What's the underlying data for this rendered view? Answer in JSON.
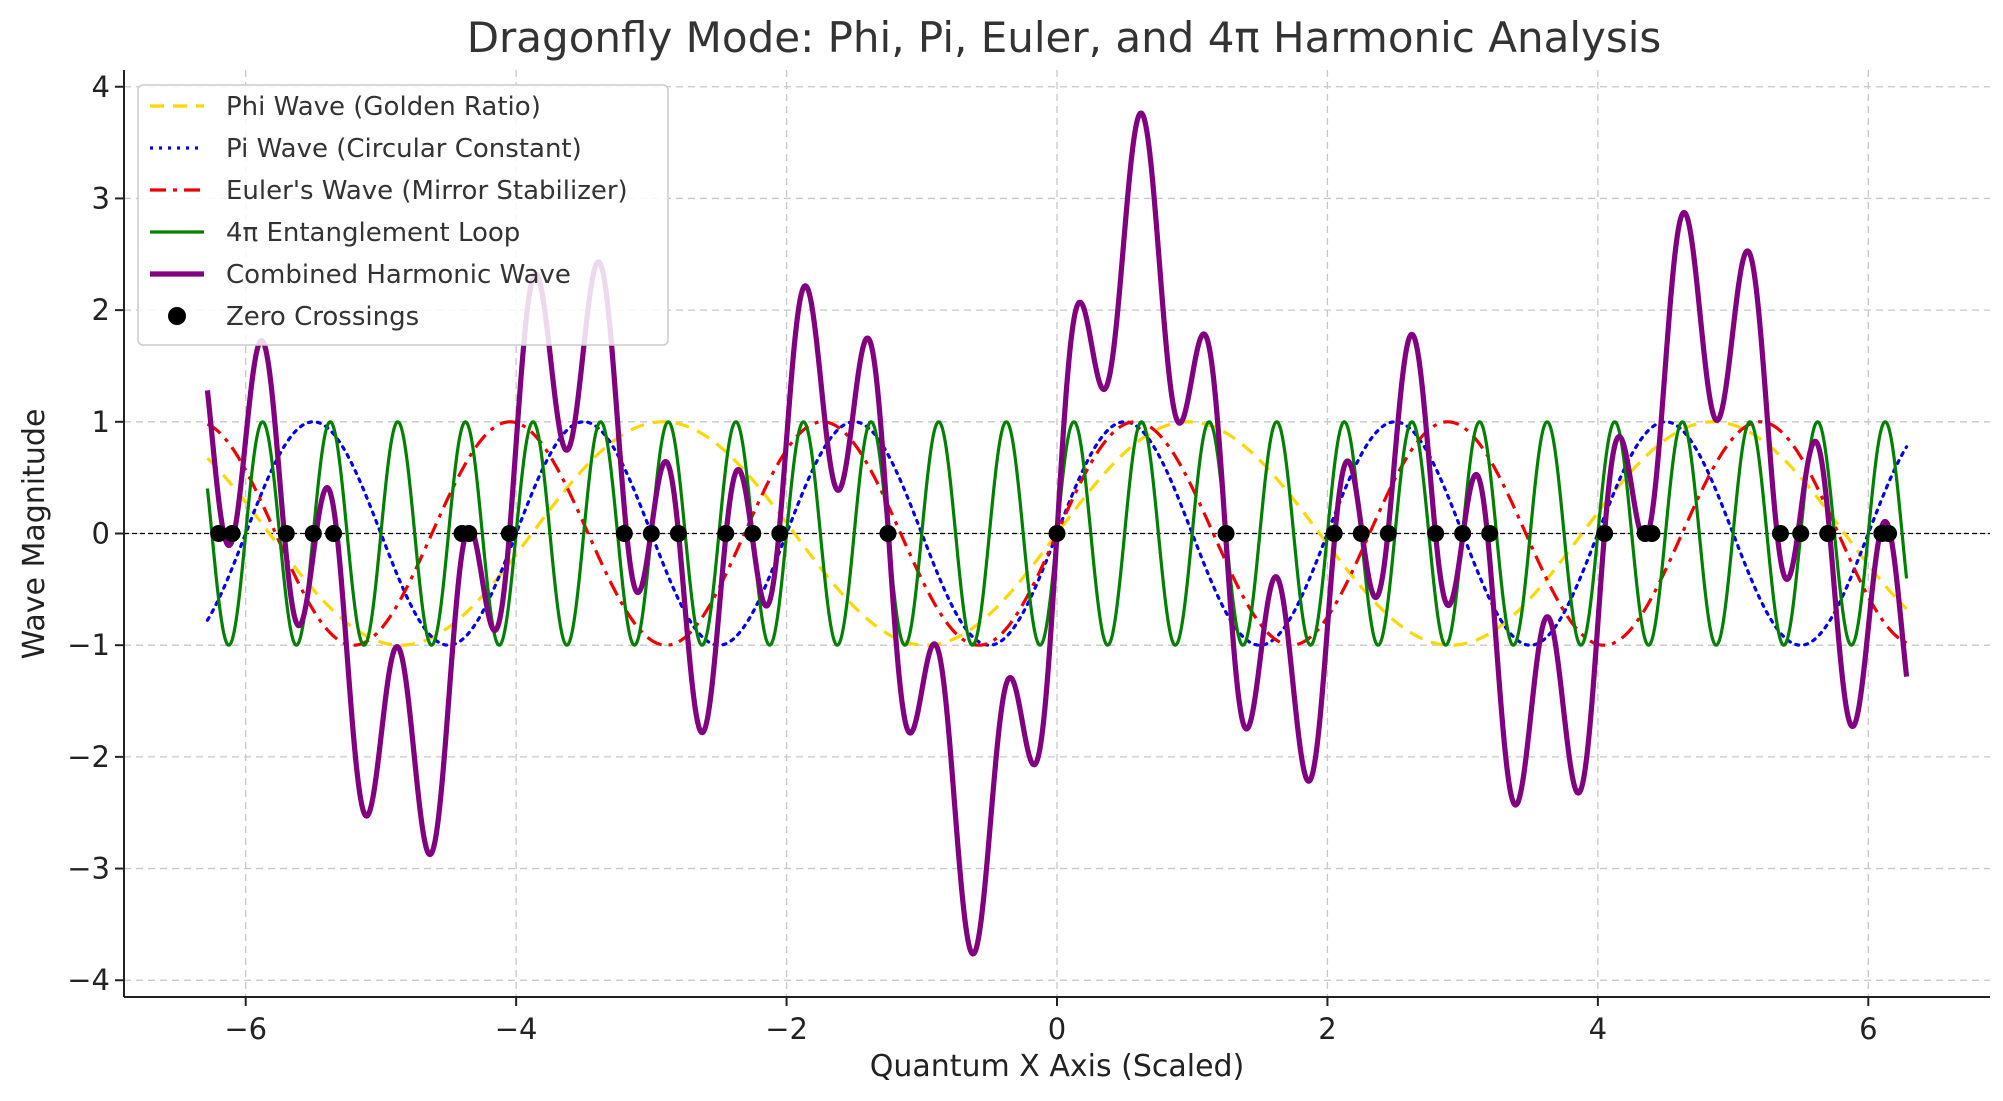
{
  "chart_data": {
    "type": "line",
    "title": "Dragonfly Mode: Phi, Pi, Euler, and 4π Harmonic Analysis",
    "xlabel": "Quantum X Axis (Scaled)",
    "ylabel": "Wave Magnitude",
    "xlim": [
      -6.9,
      6.9
    ],
    "ylim": [
      -4.15,
      4.15
    ],
    "x_ticks": [
      -6,
      -4,
      -2,
      0,
      2,
      4,
      6
    ],
    "x_tick_labels": [
      "−6",
      "−4",
      "−2",
      "0",
      "2",
      "4",
      "6"
    ],
    "y_ticks": [
      -4,
      -3,
      -2,
      -1,
      0,
      1,
      2,
      3,
      4
    ],
    "y_tick_labels": [
      "−4",
      "−3",
      "−2",
      "−1",
      "0",
      "1",
      "2",
      "3",
      "4"
    ],
    "grid": true,
    "legend_position": "top-left",
    "x_domain": [
      -6.283,
      6.283
    ],
    "series": [
      {
        "name": "Phi Wave (Golden Ratio)",
        "function": "sin(1.618*x)",
        "color": "#FFD700",
        "style": "dashed",
        "width": "normal"
      },
      {
        "name": "Pi Wave (Circular Constant)",
        "function": "sin(3.1416*x)",
        "color": "#0000EE",
        "style": "dotted",
        "width": "normal"
      },
      {
        "name": "Euler's Wave (Mirror Stabilizer)",
        "function": "sin(2.7183*x)",
        "color": "#EE0000",
        "style": "dashdot",
        "width": "normal"
      },
      {
        "name": "4π Entanglement Loop",
        "function": "sin(12.566*x)",
        "color": "#008000",
        "style": "solid",
        "width": "normal"
      },
      {
        "name": "Combined Harmonic Wave",
        "function": "sum of the four waves",
        "color": "#800080",
        "style": "solid",
        "width": "thick"
      }
    ],
    "zero_crossings": {
      "name": "Zero Crossings",
      "color": "#000000",
      "x": [
        -6.2,
        -6.1,
        -5.7,
        -5.5,
        -5.35,
        -4.4,
        -4.35,
        -4.05,
        -3.2,
        -3.0,
        -2.8,
        -2.45,
        -2.25,
        -2.05,
        -1.25,
        0.0,
        1.25,
        2.05,
        2.25,
        2.45,
        2.8,
        3.0,
        3.2,
        4.05,
        4.35,
        4.4,
        5.35,
        5.5,
        5.7,
        6.1,
        6.15
      ]
    },
    "baseline": {
      "y": 0,
      "color": "#000000",
      "style": "dashed"
    }
  }
}
